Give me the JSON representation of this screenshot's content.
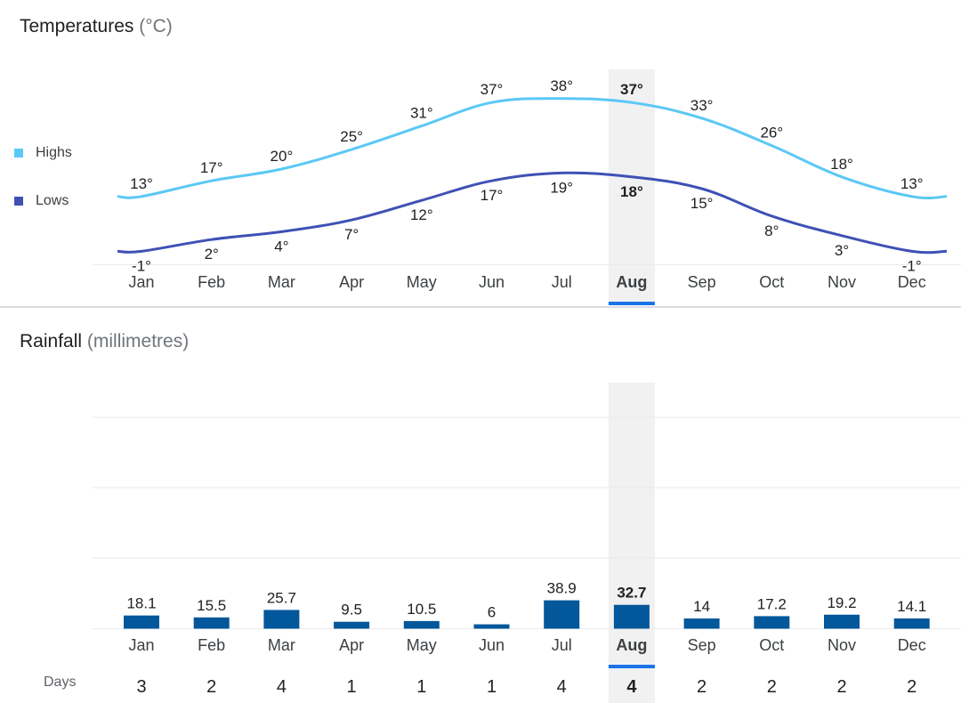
{
  "temperatures": {
    "title": "Temperatures",
    "unit": "(°C)"
  },
  "rainfall": {
    "title": "Rainfall",
    "unit": "(millimetres)"
  },
  "legend": {
    "highs": "Highs",
    "lows": "Lows"
  },
  "days_label": "Days",
  "selected_month": "Aug",
  "colors": {
    "highs": "#5bc8f5",
    "lows": "#3f51b5",
    "bars": "#03579b",
    "selected_band": "#f1f1f2",
    "selected_underline": "#1a73e8",
    "grid": "#e8eaed"
  },
  "chart_data": [
    {
      "type": "line",
      "title": "Temperatures (°C)",
      "categories": [
        "Jan",
        "Feb",
        "Mar",
        "Apr",
        "May",
        "Jun",
        "Jul",
        "Aug",
        "Sep",
        "Oct",
        "Nov",
        "Dec"
      ],
      "series": [
        {
          "name": "Highs",
          "values": [
            13,
            17,
            20,
            25,
            31,
            37,
            38,
            37,
            33,
            26,
            18,
            13
          ]
        },
        {
          "name": "Lows",
          "values": [
            -1,
            2,
            4,
            7,
            12,
            17,
            19,
            18,
            15,
            8,
            3,
            -1
          ]
        }
      ],
      "value_suffix": "°",
      "highlight": "Aug",
      "legend": "left"
    },
    {
      "type": "bar",
      "title": "Rainfall (millimetres)",
      "categories": [
        "Jan",
        "Feb",
        "Mar",
        "Apr",
        "May",
        "Jun",
        "Jul",
        "Aug",
        "Sep",
        "Oct",
        "Nov",
        "Dec"
      ],
      "values": [
        "18.1",
        "15.5",
        "25.7",
        "9.5",
        "10.5",
        "6",
        "38.9",
        "32.7",
        "14",
        "17.2",
        "19.2",
        "14.1"
      ],
      "days": [
        3,
        2,
        4,
        1,
        1,
        1,
        4,
        4,
        2,
        2,
        2,
        2
      ],
      "highlight": "Aug",
      "grid": true
    }
  ]
}
